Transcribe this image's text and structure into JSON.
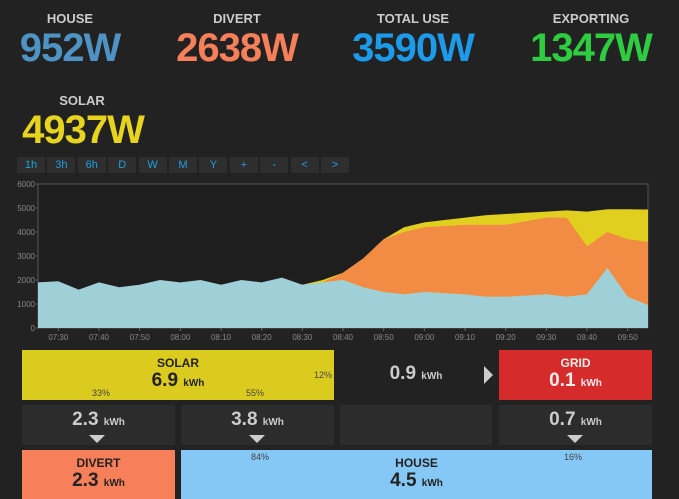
{
  "stats": [
    {
      "label": "HOUSE",
      "value": "952W",
      "color": "#4f93c4"
    },
    {
      "label": "DIVERT",
      "value": "2638W",
      "color": "#f7805a"
    },
    {
      "label": "TOTAL USE",
      "value": "3590W",
      "color": "#1c9bea"
    },
    {
      "label": "EXPORTING",
      "value": "1347W",
      "color": "#2ecc40"
    }
  ],
  "solar_stat": {
    "label": "SOLAR",
    "value": "4937W",
    "color": "#e6d41e"
  },
  "buttons": [
    "1h",
    "3h",
    "6h",
    "D",
    "W",
    "M",
    "Y",
    "+",
    "-",
    "<",
    ">"
  ],
  "chart": {
    "type": "area",
    "x": [
      "07:25",
      "07:30",
      "07:35",
      "07:40",
      "07:45",
      "07:50",
      "07:55",
      "08:00",
      "08:05",
      "08:10",
      "08:15",
      "08:20",
      "08:25",
      "08:30",
      "08:35",
      "08:40",
      "08:45",
      "08:50",
      "08:55",
      "09:00",
      "09:05",
      "09:10",
      "09:15",
      "09:20",
      "09:25",
      "09:30",
      "09:35",
      "09:40",
      "09:45",
      "09:50",
      "09:55"
    ],
    "series": [
      {
        "color": "#e0cf1f",
        "values": [
          300,
          400,
          500,
          600,
          700,
          800,
          900,
          1000,
          1100,
          1200,
          1300,
          1500,
          1600,
          1800,
          2000,
          2300,
          2900,
          3700,
          4200,
          4400,
          4500,
          4600,
          4700,
          4750,
          4800,
          4850,
          4900,
          4850,
          4950,
          4950,
          4937
        ]
      },
      {
        "color": "#f28b44",
        "values": [
          0,
          0,
          0,
          0,
          0,
          0,
          0,
          0,
          0,
          0,
          0,
          0,
          0,
          0,
          0,
          300,
          1200,
          2200,
          2600,
          2700,
          2800,
          2900,
          3000,
          3000,
          3100,
          3200,
          3300,
          2000,
          1500,
          2400,
          2638
        ]
      },
      {
        "color": "#9fd0d8",
        "values": [
          1900,
          1950,
          1600,
          1900,
          1700,
          1800,
          2000,
          1900,
          2000,
          1800,
          2000,
          1900,
          2100,
          1800,
          1900,
          2000,
          1700,
          1500,
          1400,
          1500,
          1450,
          1400,
          1300,
          1300,
          1350,
          1400,
          1300,
          1400,
          2500,
          1300,
          952
        ]
      }
    ],
    "xlim": [
      "07:25",
      "09:55"
    ],
    "xticks": [
      "07:30",
      "07:40",
      "07:50",
      "08:00",
      "08:10",
      "08:20",
      "08:30",
      "08:40",
      "08:50",
      "09:00",
      "09:10",
      "09:20",
      "09:30",
      "09:40",
      "09:50"
    ],
    "ylim": [
      0,
      6000
    ],
    "yticks": [
      0,
      1000,
      2000,
      3000,
      4000,
      5000,
      6000
    ]
  },
  "flows": {
    "solar": {
      "label": "SOLAR",
      "value": "6.9",
      "unit": "kWh",
      "pct_left": "33%",
      "pct_mid": "55%",
      "pct_right": "12%"
    },
    "grid_link": {
      "value": "0.9",
      "unit": "kWh"
    },
    "grid": {
      "label": "GRID",
      "value": "0.1",
      "unit": "kWh"
    },
    "to_divert": {
      "value": "2.3",
      "unit": "kWh"
    },
    "to_house": {
      "value": "3.8",
      "unit": "kWh"
    },
    "grid_to_house": {
      "value": "0.7",
      "unit": "kWh"
    },
    "divert": {
      "label": "DIVERT",
      "value": "2.3",
      "unit": "kWh"
    },
    "house": {
      "label": "HOUSE",
      "value": "4.5",
      "unit": "kWh",
      "pct_left": "84%",
      "pct_right": "16%"
    }
  }
}
